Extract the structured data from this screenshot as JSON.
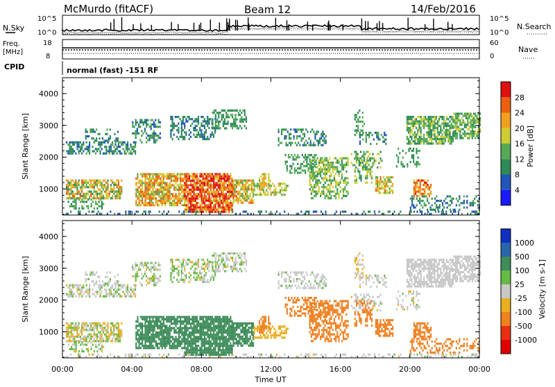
{
  "header": {
    "station": "McMurdo (fitACF)",
    "beam": "Beam 12",
    "date": "14/Feb/2016"
  },
  "noise_panel": {
    "left_label": "N.Sky",
    "right_label": "N.Search",
    "ticks_left": [
      "10^5",
      "10^0"
    ],
    "ticks_right": [
      "10^5",
      "10^0"
    ]
  },
  "freq_panel": {
    "left_label_line1": "Freq.",
    "left_label_line2": "[MHz]",
    "right_label": "Nave",
    "ticks_left": [
      "18",
      "8"
    ],
    "ticks_right": [
      "60",
      "0"
    ]
  },
  "cpid_panel": {
    "label": "CPID",
    "mode_text": "normal (fast) -151 RF"
  },
  "chart_data": [
    {
      "type": "heatmap",
      "panel": "power",
      "ylabel": "Slant Range [km]",
      "xlabel": "Time UT",
      "ylim": [
        180,
        4500
      ],
      "xlim": [
        0,
        24
      ],
      "yticks": [
        "1000",
        "2000",
        "3000",
        "4000"
      ],
      "xticks": [
        "00:00",
        "04:00",
        "08:00",
        "12:00",
        "16:00",
        "20:00",
        "00:00"
      ],
      "colorbar": {
        "label": "Power [dB]",
        "ticks": [
          "4",
          "8",
          "12",
          "16",
          "20",
          "24",
          "28"
        ],
        "colors": [
          "#1a1aff",
          "#2255bb",
          "#2e8b57",
          "#55aa55",
          "#cccc33",
          "#f0a020",
          "#e86010",
          "#e01010"
        ]
      }
    },
    {
      "type": "heatmap",
      "panel": "velocity",
      "ylabel": "Slant Range [km]",
      "xlabel": "Time UT",
      "ylim": [
        180,
        4500
      ],
      "xlim": [
        0,
        24
      ],
      "yticks": [
        "1000",
        "2000",
        "3000",
        "4000"
      ],
      "xticks": [
        "00:00",
        "04:00",
        "08:00",
        "12:00",
        "16:00",
        "20:00",
        "00:00"
      ],
      "colorbar": {
        "label": "Velocity [m s-1]",
        "ticks": [
          "1000",
          "500",
          "100",
          "25",
          "-25",
          "-100",
          "-500",
          "-1000"
        ],
        "colors": [
          "#1030c0",
          "#2a66aa",
          "#3d8c5a",
          "#66bb44",
          "#c8c8c8",
          "#e8b020",
          "#f08020",
          "#e83010",
          "#e00000"
        ]
      }
    }
  ]
}
